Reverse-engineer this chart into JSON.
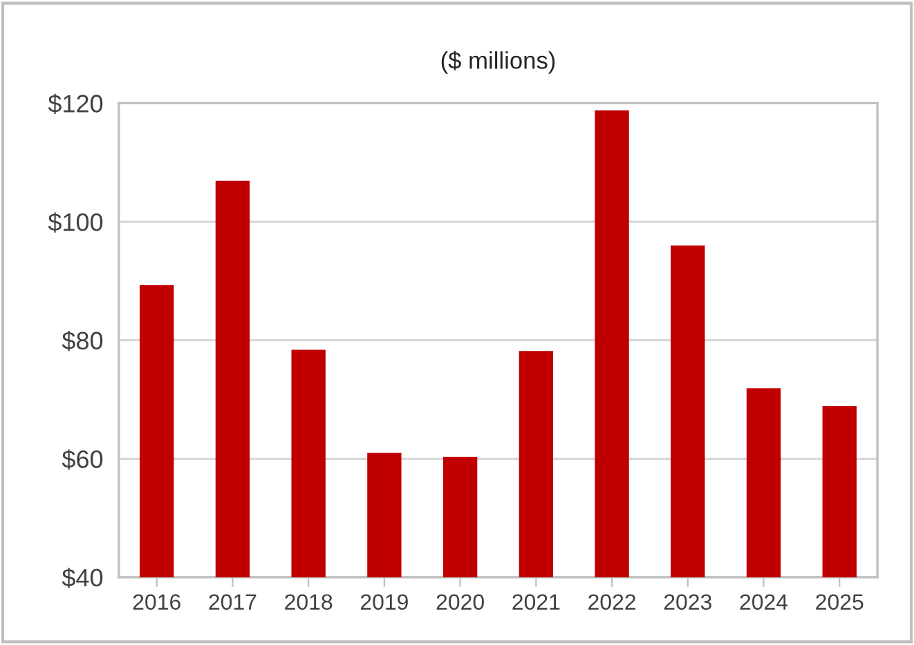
{
  "chart_data": {
    "type": "bar",
    "title": "($ millions)",
    "categories": [
      "2016",
      "2017",
      "2018",
      "2019",
      "2020",
      "2021",
      "2022",
      "2023",
      "2024",
      "2025"
    ],
    "values": [
      89.3,
      106.9,
      78.4,
      61.0,
      60.3,
      78.2,
      118.8,
      96.0,
      71.9,
      68.9
    ],
    "color": "#c00000",
    "ylim": [
      40,
      120
    ],
    "yticks": [
      {
        "value": 40,
        "label": "$40"
      },
      {
        "value": 60,
        "label": "$60"
      },
      {
        "value": 80,
        "label": "$80"
      },
      {
        "value": 100,
        "label": "$100"
      },
      {
        "value": 120,
        "label": "$120"
      }
    ],
    "grid": "y"
  }
}
